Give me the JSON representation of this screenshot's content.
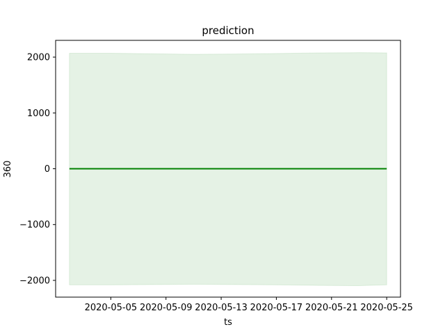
{
  "chart_data": {
    "type": "line",
    "title": "prediction",
    "xlabel": "ts",
    "ylabel": "360",
    "x_dates": [
      "2020-05-02",
      "2020-05-05",
      "2020-05-08",
      "2020-05-11",
      "2020-05-14",
      "2020-05-17",
      "2020-05-20",
      "2020-05-23",
      "2020-05-25"
    ],
    "series": [
      {
        "values": [
          0,
          0,
          0,
          0,
          0,
          0,
          0,
          0,
          0
        ],
        "color": "#008000"
      }
    ],
    "band": {
      "upper": [
        2070,
        2070,
        2060,
        2050,
        2055,
        2065,
        2075,
        2080,
        2075
      ],
      "lower": [
        -2080,
        -2080,
        -2075,
        -2070,
        -2075,
        -2080,
        -2090,
        -2095,
        -2080
      ],
      "color": "#008000",
      "opacity": 0.1
    },
    "xlim": [
      "2020-05-01",
      "2020-05-26"
    ],
    "ylim": [
      -2300,
      2300
    ],
    "xticks": [
      "2020-05-05",
      "2020-05-09",
      "2020-05-13",
      "2020-05-17",
      "2020-05-21",
      "2020-05-25"
    ],
    "yticks": [
      -2000,
      -1000,
      0,
      1000,
      2000
    ],
    "ytick_labels": [
      "−2000",
      "−1000",
      "0",
      "1000",
      "2000"
    ],
    "grid": false
  }
}
